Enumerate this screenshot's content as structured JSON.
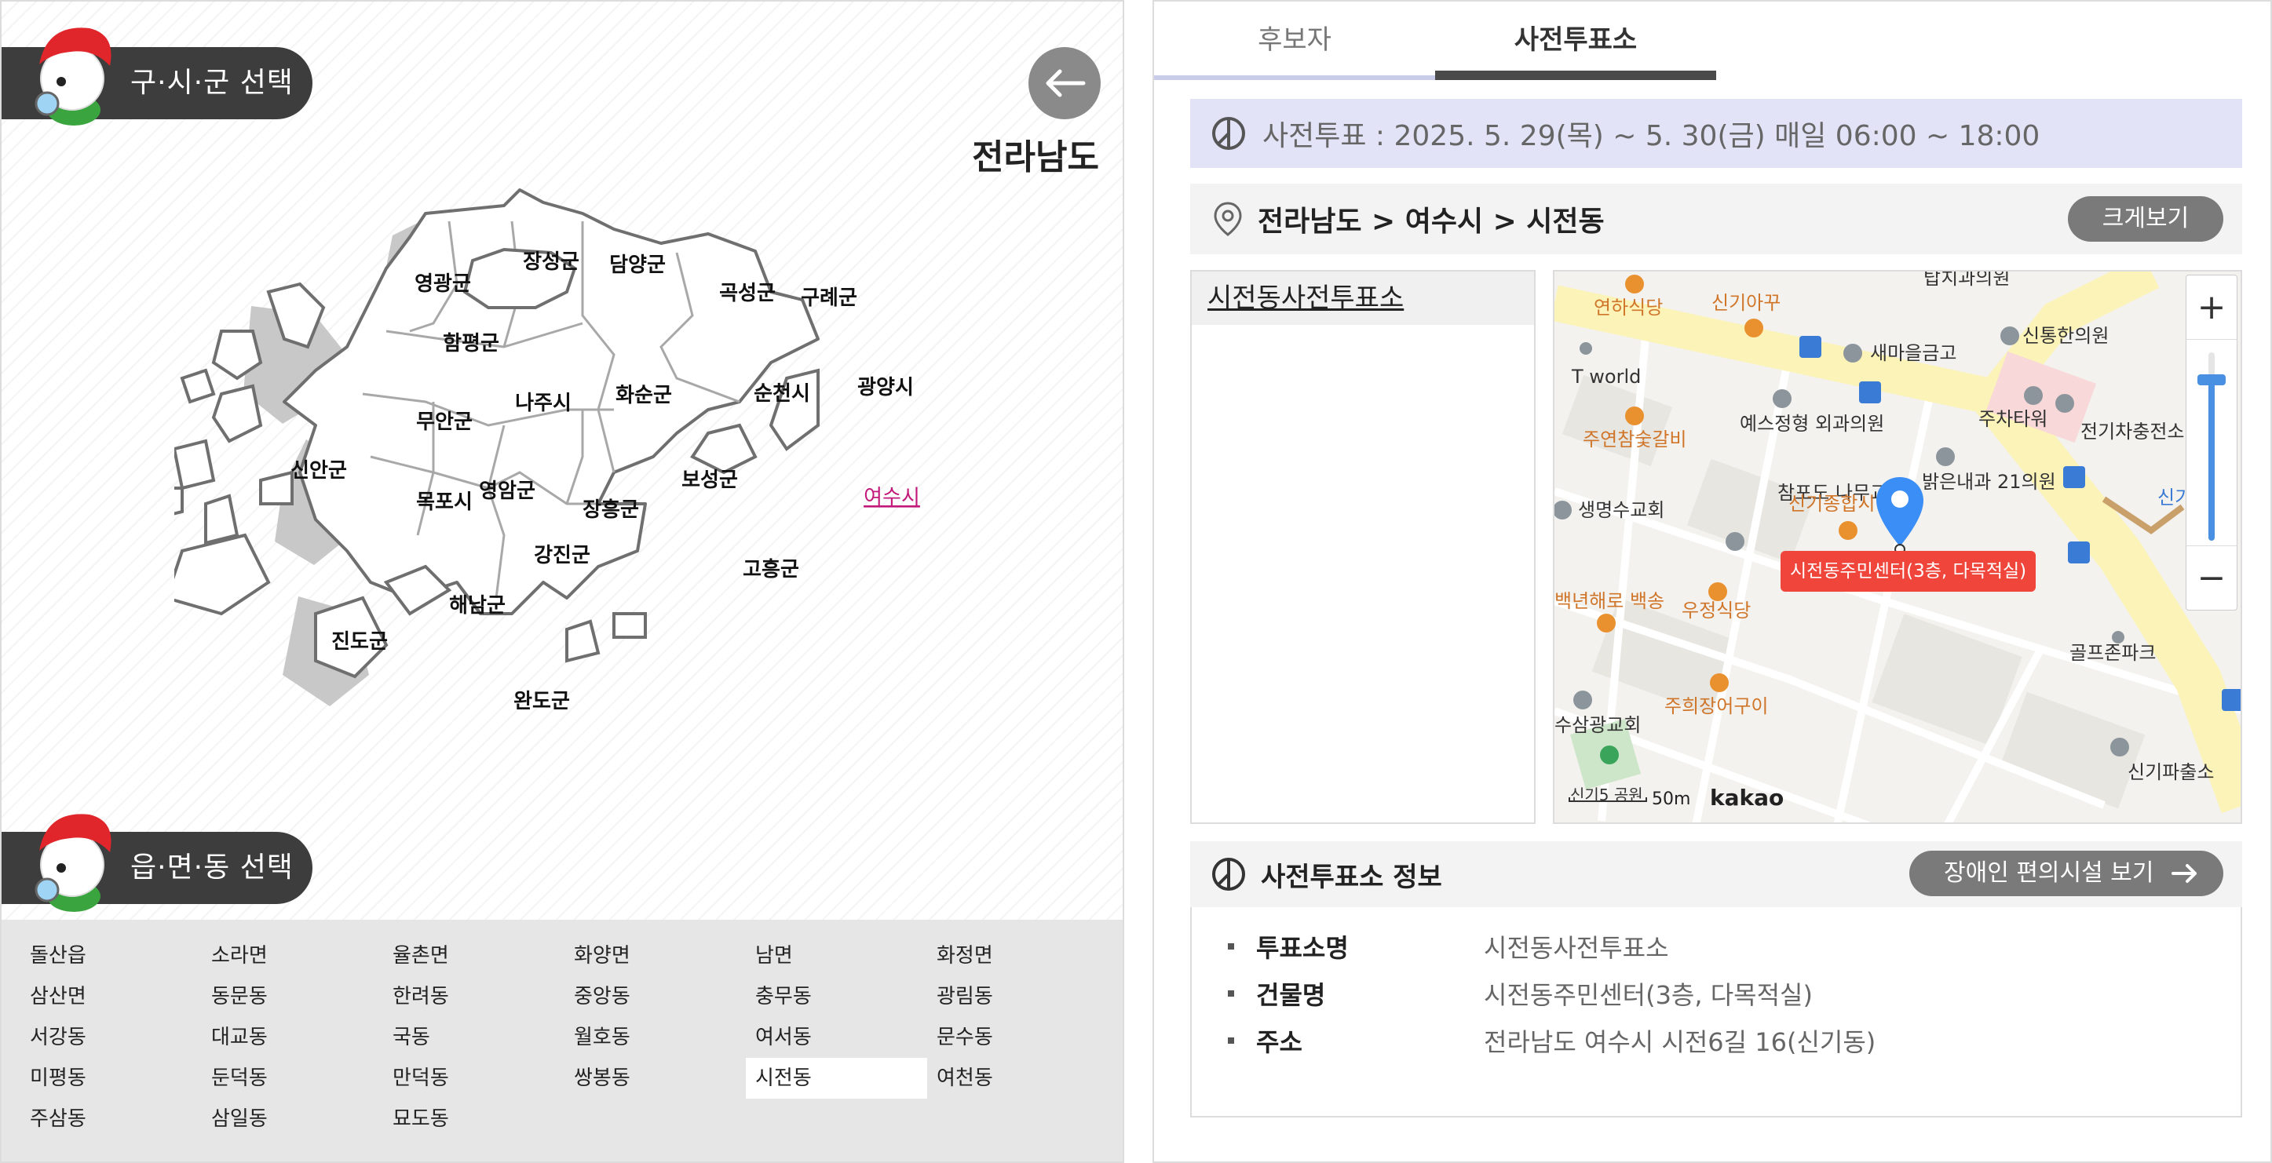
{
  "left_panel": {
    "district_select_label": "구·시·군 선택",
    "town_select_label": "읍·면·동 선택",
    "province": "전라남도",
    "regions": [
      {
        "name": "영광군"
      },
      {
        "name": "장성군"
      },
      {
        "name": "담양군"
      },
      {
        "name": "곡성군"
      },
      {
        "name": "구례군"
      },
      {
        "name": "함평군"
      },
      {
        "name": "나주시"
      },
      {
        "name": "화순군"
      },
      {
        "name": "순천시"
      },
      {
        "name": "광양시"
      },
      {
        "name": "무안군"
      },
      {
        "name": "신안군"
      },
      {
        "name": "목포시"
      },
      {
        "name": "영암군"
      },
      {
        "name": "보성군"
      },
      {
        "name": "여수시"
      },
      {
        "name": "장흥군"
      },
      {
        "name": "강진군"
      },
      {
        "name": "고흥군"
      },
      {
        "name": "해남군"
      },
      {
        "name": "진도군"
      },
      {
        "name": "완도군"
      }
    ],
    "selected_region": "여수시",
    "towns": [
      "돌산읍",
      "소라면",
      "율촌면",
      "화양면",
      "남면",
      "화정면",
      "삼산면",
      "동문동",
      "한려동",
      "중앙동",
      "충무동",
      "광림동",
      "서강동",
      "대교동",
      "국동",
      "월호동",
      "여서동",
      "문수동",
      "미평동",
      "둔덕동",
      "만덕동",
      "쌍봉동",
      "시전동",
      "여천동",
      "주삼동",
      "삼일동",
      "묘도동"
    ],
    "selected_town": "시전동"
  },
  "right_panel": {
    "tabs": [
      {
        "label": "후보자"
      },
      {
        "label": "사전투표소"
      }
    ],
    "active_tab": "사전투표소",
    "period": "사전투표 : 2025. 5. 29(목) ~ 5. 30(금) 매일 06:00 ~ 18:00",
    "breadcrumb": "전라남도 > 여수시 > 시전동",
    "enlarge_label": "크게보기",
    "places": [
      "시전동사전투표소"
    ],
    "map": {
      "marker_label": "시전동주민센터(3층, 다목적실)",
      "zoom_in": "+",
      "zoom_out": "−",
      "scale": "50m",
      "brand": "kakao",
      "pois": [
        "연하식당",
        "신기아꾸",
        "새마을금고",
        "신통한의원",
        "T world",
        "예스정형 외과의원",
        "주차타워",
        "전기차충전소",
        "주연참숯갈비",
        "밝은내과 21의원",
        "참포도 나무교회",
        "신기종합시",
        "생명수교회",
        "우정식당",
        "골프존파크",
        "주희장어구이",
        "수삼광교회",
        "신기파출소",
        "신기5 공원",
        "백년해로 백송",
        "탑치과의원",
        "신기치"
      ]
    },
    "info": {
      "title": "사전투표소 정보",
      "accessibility_label": "장애인 편의시설 보기",
      "rows": [
        {
          "key": "투표소명",
          "value": "시전동사전투표소"
        },
        {
          "key": "건물명",
          "value": "시전동주민센터(3층, 다목적실)"
        },
        {
          "key": "주소",
          "value": "전라남도 여수시 시전6길 16(신기동)"
        }
      ]
    }
  }
}
